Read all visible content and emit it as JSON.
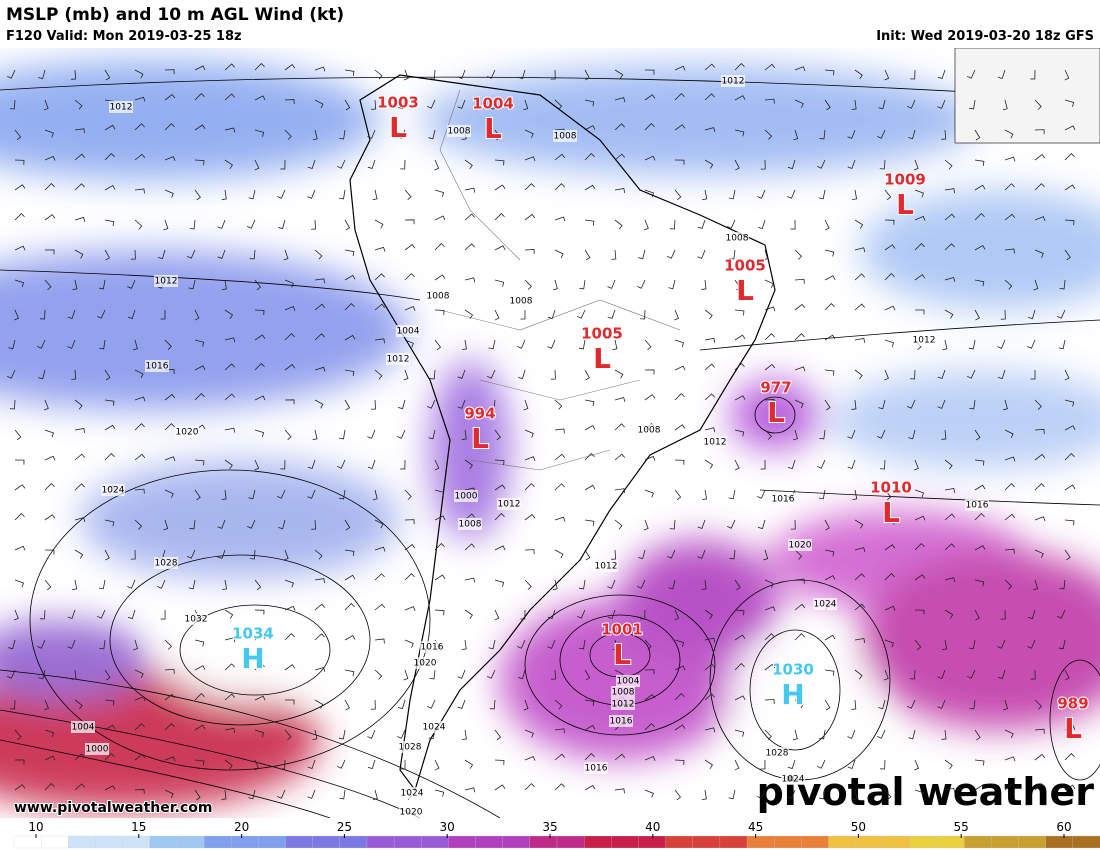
{
  "header": {
    "title": "MSLP (mb) and 10 m AGL Wind (kt)",
    "valid": "F120 Valid: Mon 2019-03-25 18z",
    "init": "Init: Wed 2019-03-20 18z GFS"
  },
  "pressure_centers": [
    {
      "label": "L",
      "value": 1003
    },
    {
      "label": "L",
      "value": 1004
    },
    {
      "label": "L",
      "value": 1009
    },
    {
      "label": "L",
      "value": 1005
    },
    {
      "label": "L",
      "value": 1005
    },
    {
      "label": "L",
      "value": 977
    },
    {
      "label": "L",
      "value": 994
    },
    {
      "label": "L",
      "value": 1010
    },
    {
      "label": "H",
      "value": 1034
    },
    {
      "label": "L",
      "value": 1001
    },
    {
      "label": "H",
      "value": 1030
    },
    {
      "label": "L",
      "value": 989
    }
  ],
  "isobar_labels": [
    1012,
    1012,
    1008,
    1008,
    1008,
    1012,
    1008,
    1008,
    1004,
    1012,
    1016,
    1012,
    1020,
    1008,
    1012,
    1024,
    1016,
    1016,
    1000,
    1012,
    1008,
    1020,
    1012,
    1028,
    1024,
    1032,
    1016,
    1020,
    1004,
    1008,
    1012,
    1016,
    1004,
    1000,
    1024,
    1028,
    1028,
    1016,
    1024,
    1024,
    1020
  ],
  "colorbar": {
    "ticks": [
      10,
      15,
      20,
      25,
      30,
      35,
      40,
      45,
      50,
      55,
      60
    ]
  },
  "footer": {
    "website": "www.pivotalweather.com",
    "logo": "pivotal weather"
  }
}
